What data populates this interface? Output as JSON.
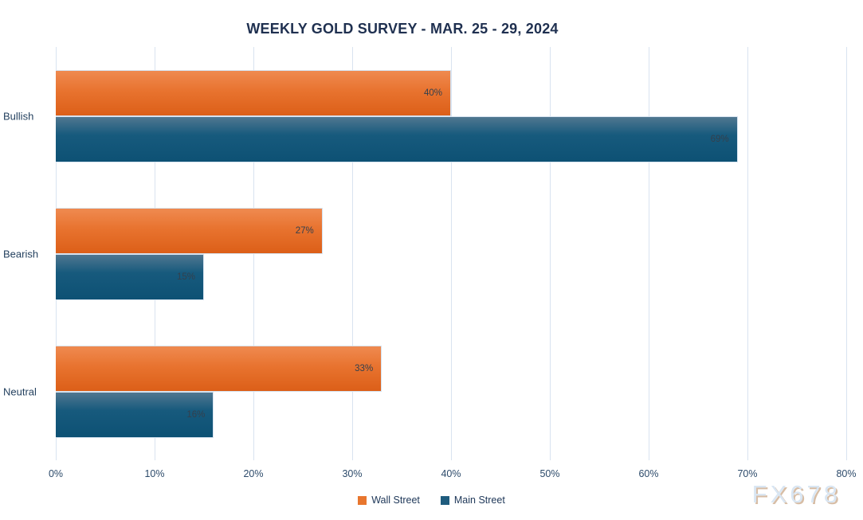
{
  "chart_data": {
    "type": "bar",
    "orientation": "horizontal",
    "title": "WEEKLY GOLD SURVEY - MAR. 25 - 29, 2024",
    "categories": [
      "Bullish",
      "Bearish",
      "Neutral"
    ],
    "series": [
      {
        "name": "Wall Street",
        "color": "#e8762e",
        "values": [
          40,
          27,
          33
        ],
        "data_labels": [
          "40%",
          "27%",
          "33%"
        ]
      },
      {
        "name": "Main Street",
        "color": "#1f5c7e",
        "values": [
          69,
          15,
          16
        ],
        "data_labels": [
          "69%",
          "15%",
          "16%"
        ]
      }
    ],
    "xlim": [
      0,
      80
    ],
    "x_ticks": [
      {
        "value": 0,
        "label": "0%"
      },
      {
        "value": 10,
        "label": "10%"
      },
      {
        "value": 20,
        "label": "20%"
      },
      {
        "value": 30,
        "label": "30%"
      },
      {
        "value": 40,
        "label": "40%"
      },
      {
        "value": 50,
        "label": "50%"
      },
      {
        "value": 60,
        "label": "60%"
      },
      {
        "value": 70,
        "label": "70%"
      },
      {
        "value": 80,
        "label": "80%"
      }
    ],
    "grid": "vertical-only",
    "legend_position": "bottom-center",
    "colors": {
      "title_text": "#1f3050",
      "axis_text": "#2c4a6a",
      "category_text": "#24415f",
      "data_label_text": "#34404d",
      "gridline": "#d9e3f0",
      "orange_gradient_top": "#ef8a50",
      "orange_gradient_bottom": "#dc5f18",
      "blue_gradient_top": "#507790",
      "blue_gradient_bottom": "#0d5174"
    }
  },
  "watermark": {
    "text": "FX678"
  }
}
